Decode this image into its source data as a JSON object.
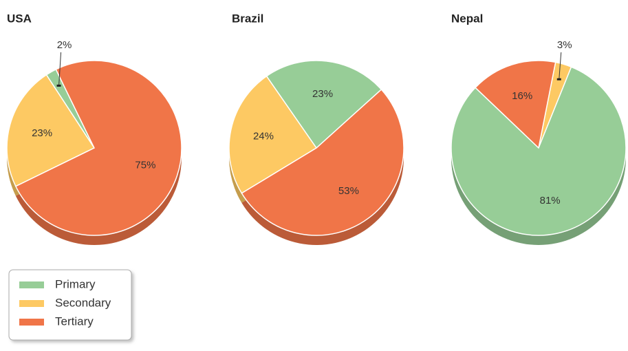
{
  "chart_data": [
    {
      "type": "pie",
      "title": "USA",
      "categories": [
        "Primary",
        "Secondary",
        "Tertiary"
      ],
      "values": [
        2,
        23,
        75
      ],
      "value_labels": [
        "2%",
        "23%",
        "75%"
      ],
      "colors": [
        "#97cd97",
        "#fdc963",
        "#f07548"
      ]
    },
    {
      "type": "pie",
      "title": "Brazil",
      "categories": [
        "Primary",
        "Secondary",
        "Tertiary"
      ],
      "values": [
        23,
        24,
        53
      ],
      "value_labels": [
        "23%",
        "24%",
        "53%"
      ],
      "colors": [
        "#97cd97",
        "#fdc963",
        "#f07548"
      ]
    },
    {
      "type": "pie",
      "title": "Nepal",
      "categories": [
        "Primary",
        "Secondary",
        "Tertiary"
      ],
      "values": [
        81,
        3,
        16
      ],
      "value_labels": [
        "81%",
        "3%",
        "16%"
      ],
      "colors": [
        "#97cd97",
        "#fdc963",
        "#f07548"
      ]
    }
  ]
}
